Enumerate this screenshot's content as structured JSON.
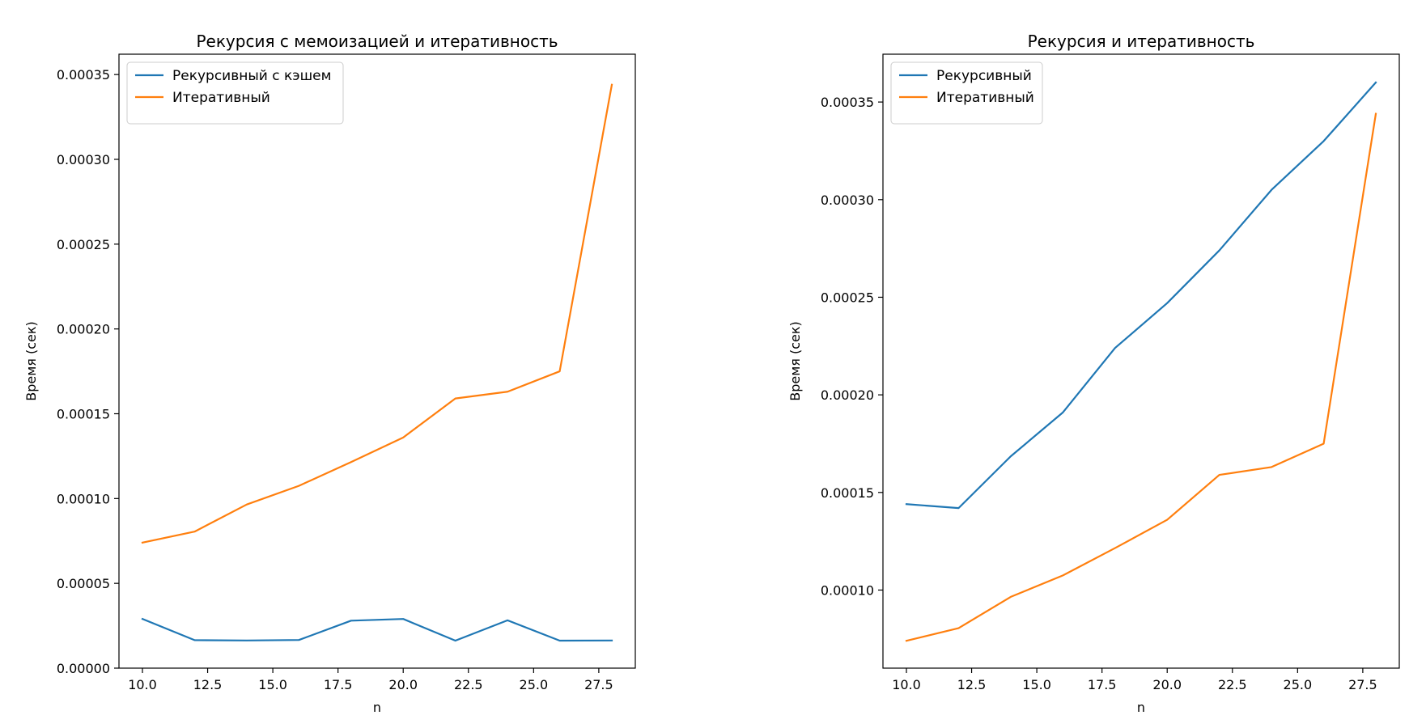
{
  "chart_data": [
    {
      "type": "line",
      "title": "Рекурсия с мемоизацией и итеративность",
      "xlabel": "n",
      "ylabel": "Время (сек)",
      "xlim": [
        9.1,
        28.9
      ],
      "ylim": [
        0,
        0.000362
      ],
      "xticks": [
        10.0,
        12.5,
        15.0,
        17.5,
        20.0,
        22.5,
        25.0,
        27.5
      ],
      "xtick_labels": [
        "10.0",
        "12.5",
        "15.0",
        "17.5",
        "20.0",
        "22.5",
        "25.0",
        "27.5"
      ],
      "yticks": [
        0,
        5e-05,
        0.0001,
        0.00015,
        0.0002,
        0.00025,
        0.0003,
        0.00035
      ],
      "ytick_labels": [
        "0.00000",
        "0.00005",
        "0.00010",
        "0.00015",
        "0.00020",
        "0.00025",
        "0.00030",
        "0.00035"
      ],
      "legend_position": "top-left",
      "grid": false,
      "x": [
        10,
        12,
        14,
        16,
        18,
        20,
        22,
        24,
        26,
        28
      ],
      "series": [
        {
          "name": "Рекурсивный с кэшем",
          "color": "#1f77b4",
          "values": [
            2.9e-05,
            1.65e-05,
            1.63e-05,
            1.66e-05,
            2.8e-05,
            2.9e-05,
            1.62e-05,
            2.82e-05,
            1.62e-05,
            1.63e-05
          ]
        },
        {
          "name": "Итеративный",
          "color": "#ff7f0e",
          "values": [
            7.4e-05,
            8.05e-05,
            9.65e-05,
            0.0001075,
            0.0001215,
            0.000136,
            0.000159,
            0.000163,
            0.000175,
            0.000344
          ]
        }
      ]
    },
    {
      "type": "line",
      "title": "Рекурсия и итеративность",
      "xlabel": "n",
      "ylabel": "Время (сек)",
      "xlim": [
        9.1,
        28.9
      ],
      "ylim": [
        6e-05,
        0.0003745
      ],
      "xticks": [
        10.0,
        12.5,
        15.0,
        17.5,
        20.0,
        22.5,
        25.0,
        27.5
      ],
      "xtick_labels": [
        "10.0",
        "12.5",
        "15.0",
        "17.5",
        "20.0",
        "22.5",
        "25.0",
        "27.5"
      ],
      "yticks": [
        0.0001,
        0.00015,
        0.0002,
        0.00025,
        0.0003,
        0.00035
      ],
      "ytick_labels": [
        "0.00010",
        "0.00015",
        "0.00020",
        "0.00025",
        "0.00030",
        "0.00035"
      ],
      "legend_position": "top-left",
      "grid": false,
      "x": [
        10,
        12,
        14,
        16,
        18,
        20,
        22,
        24,
        26,
        28
      ],
      "series": [
        {
          "name": "Рекурсивный",
          "color": "#1f77b4",
          "values": [
            0.000144,
            0.000142,
            0.0001685,
            0.000191,
            0.000224,
            0.000247,
            0.000274,
            0.000305,
            0.00033,
            0.00036
          ]
        },
        {
          "name": "Итеративный",
          "color": "#ff7f0e",
          "values": [
            7.4e-05,
            8.05e-05,
            9.65e-05,
            0.0001075,
            0.0001215,
            0.000136,
            0.000159,
            0.000163,
            0.000175,
            0.000344
          ]
        }
      ]
    }
  ]
}
